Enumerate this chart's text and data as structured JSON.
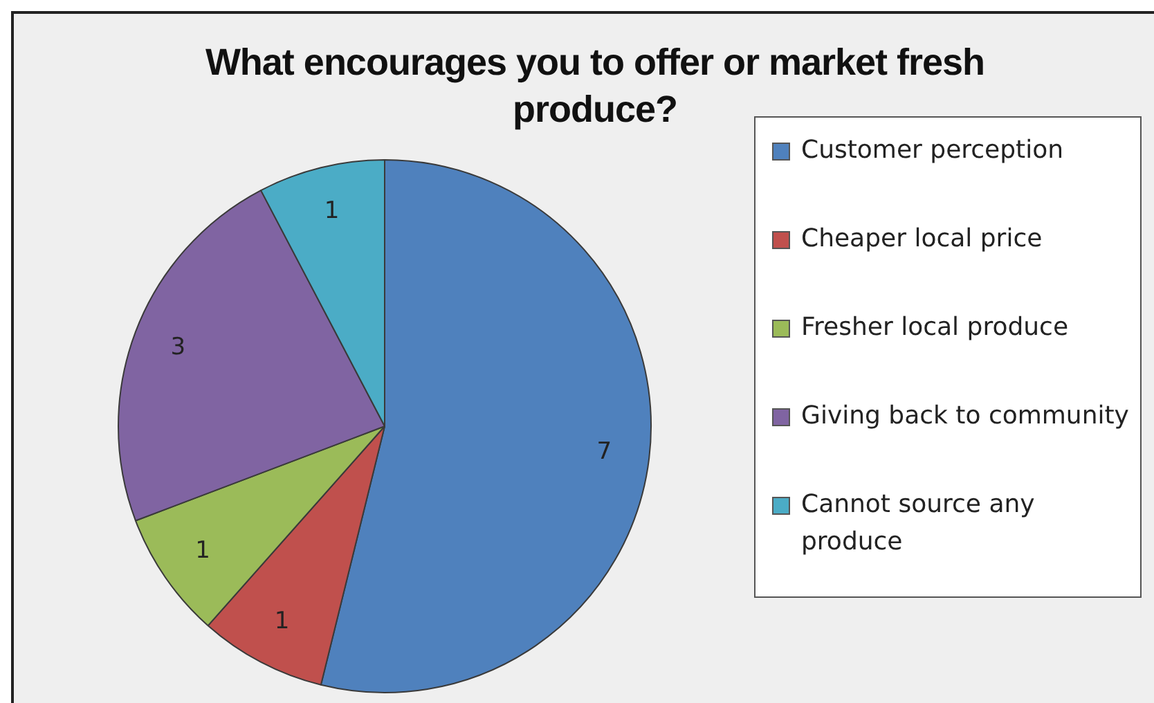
{
  "chart_data": {
    "type": "pie",
    "title": "What encourages you to offer or market fresh produce?",
    "categories": [
      "Customer perception",
      "Cheaper local price",
      "Fresher local produce",
      "Giving back to community",
      "Cannot source any produce"
    ],
    "values": [
      7,
      1,
      1,
      3,
      1
    ],
    "colors": [
      "#4f81bd",
      "#c0504d",
      "#9bbb59",
      "#8064a2",
      "#4bacc6"
    ],
    "data_labels": true,
    "legend": "right"
  }
}
